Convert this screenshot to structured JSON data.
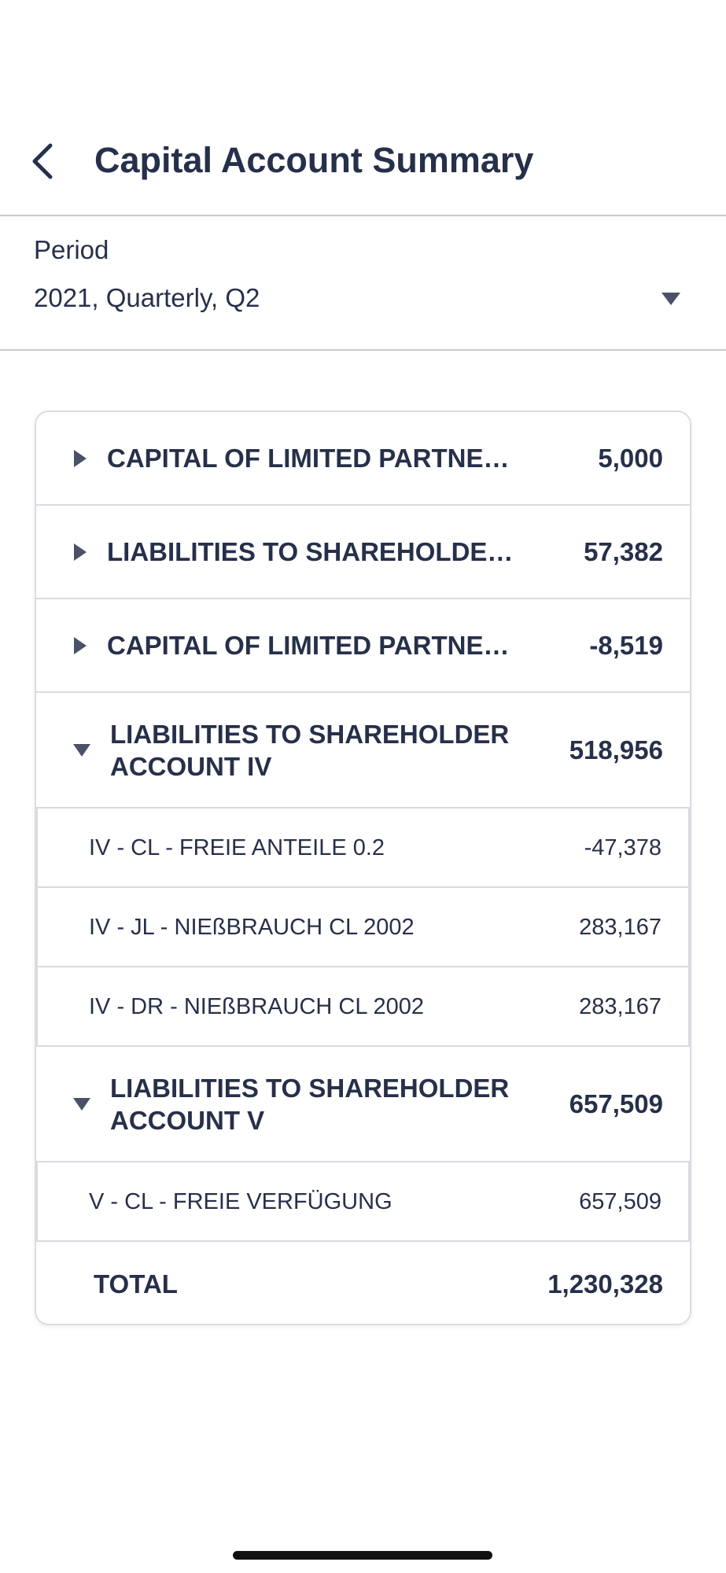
{
  "header": {
    "title": "Capital Account Summary",
    "back_icon": "chevron-left-icon"
  },
  "period": {
    "label": "Period",
    "value": "2021, Quarterly, Q2",
    "dropdown_icon": "caret-down-icon"
  },
  "summary": {
    "groups": [
      {
        "label": "CAPITAL OF LIMITED PARTNERS…",
        "value": "5,000",
        "expanded": false
      },
      {
        "label": "LIABILITIES TO SHAREHOLDER A…",
        "value": "57,382",
        "expanded": false
      },
      {
        "label": "CAPITAL OF LIMITED PARTNERS…",
        "value": "-8,519",
        "expanded": false
      },
      {
        "label": "LIABILITIES TO SHAREHOLDER ACCOUNT IV",
        "value": "518,956",
        "expanded": true,
        "children": [
          {
            "label": "IV - CL - FREIE ANTEILE 0.2",
            "value": "-47,378"
          },
          {
            "label": "IV - JL - NIEßBRAUCH CL 2002",
            "value": "283,167"
          },
          {
            "label": "IV - DR - NIEßBRAUCH CL 2002",
            "value": "283,167"
          }
        ]
      },
      {
        "label": "LIABILITIES TO SHAREHOLDER ACCOUNT V",
        "value": "657,509",
        "expanded": true,
        "children": [
          {
            "label": "V - CL - FREIE VERFÜGUNG",
            "value": "657,509"
          }
        ]
      }
    ],
    "total": {
      "label": "TOTAL",
      "value": "1,230,328"
    }
  },
  "colors": {
    "text": "#27304a",
    "divider": "#c8c9cd",
    "card_border": "#dcdde2"
  }
}
